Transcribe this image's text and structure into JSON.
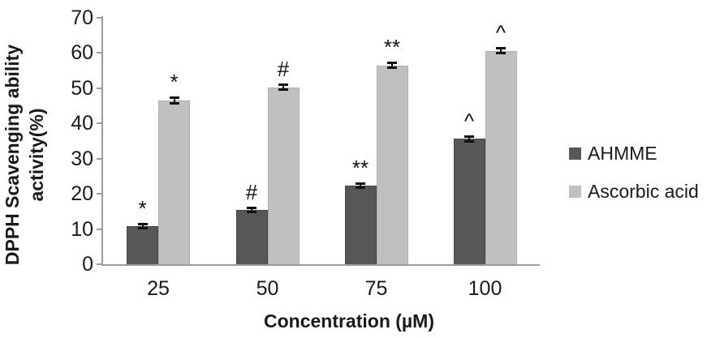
{
  "chart_data": {
    "type": "bar",
    "title": "",
    "xlabel": "Concentration (µM)",
    "ylabel": "DPPH Scavenging ability activity(%)",
    "categories": [
      "25",
      "50",
      "75",
      "100"
    ],
    "series": [
      {
        "name": "AHMME",
        "color": "#575757",
        "border_color": "#454545",
        "values": [
          10.8,
          15.4,
          22.3,
          35.6
        ],
        "errors": [
          0.4,
          0.5,
          0.5,
          0.5
        ],
        "annotations": [
          "*",
          "#",
          "**",
          "^"
        ]
      },
      {
        "name": "Ascorbic acid",
        "color": "#c0c0c0",
        "border_color": "#aeaeae",
        "values": [
          46.5,
          50.3,
          56.5,
          60.6
        ],
        "errors": [
          0.6,
          0.6,
          0.6,
          0.6
        ],
        "annotations": [
          "*",
          "#",
          "**",
          "^"
        ]
      }
    ],
    "ylim": [
      0,
      70
    ],
    "y_ticks": [
      0,
      10,
      20,
      30,
      40,
      50,
      60,
      70
    ],
    "grid": false,
    "legend_position": "right",
    "error_bar_color": "#111111",
    "axis_color": "#9c9c9c"
  }
}
